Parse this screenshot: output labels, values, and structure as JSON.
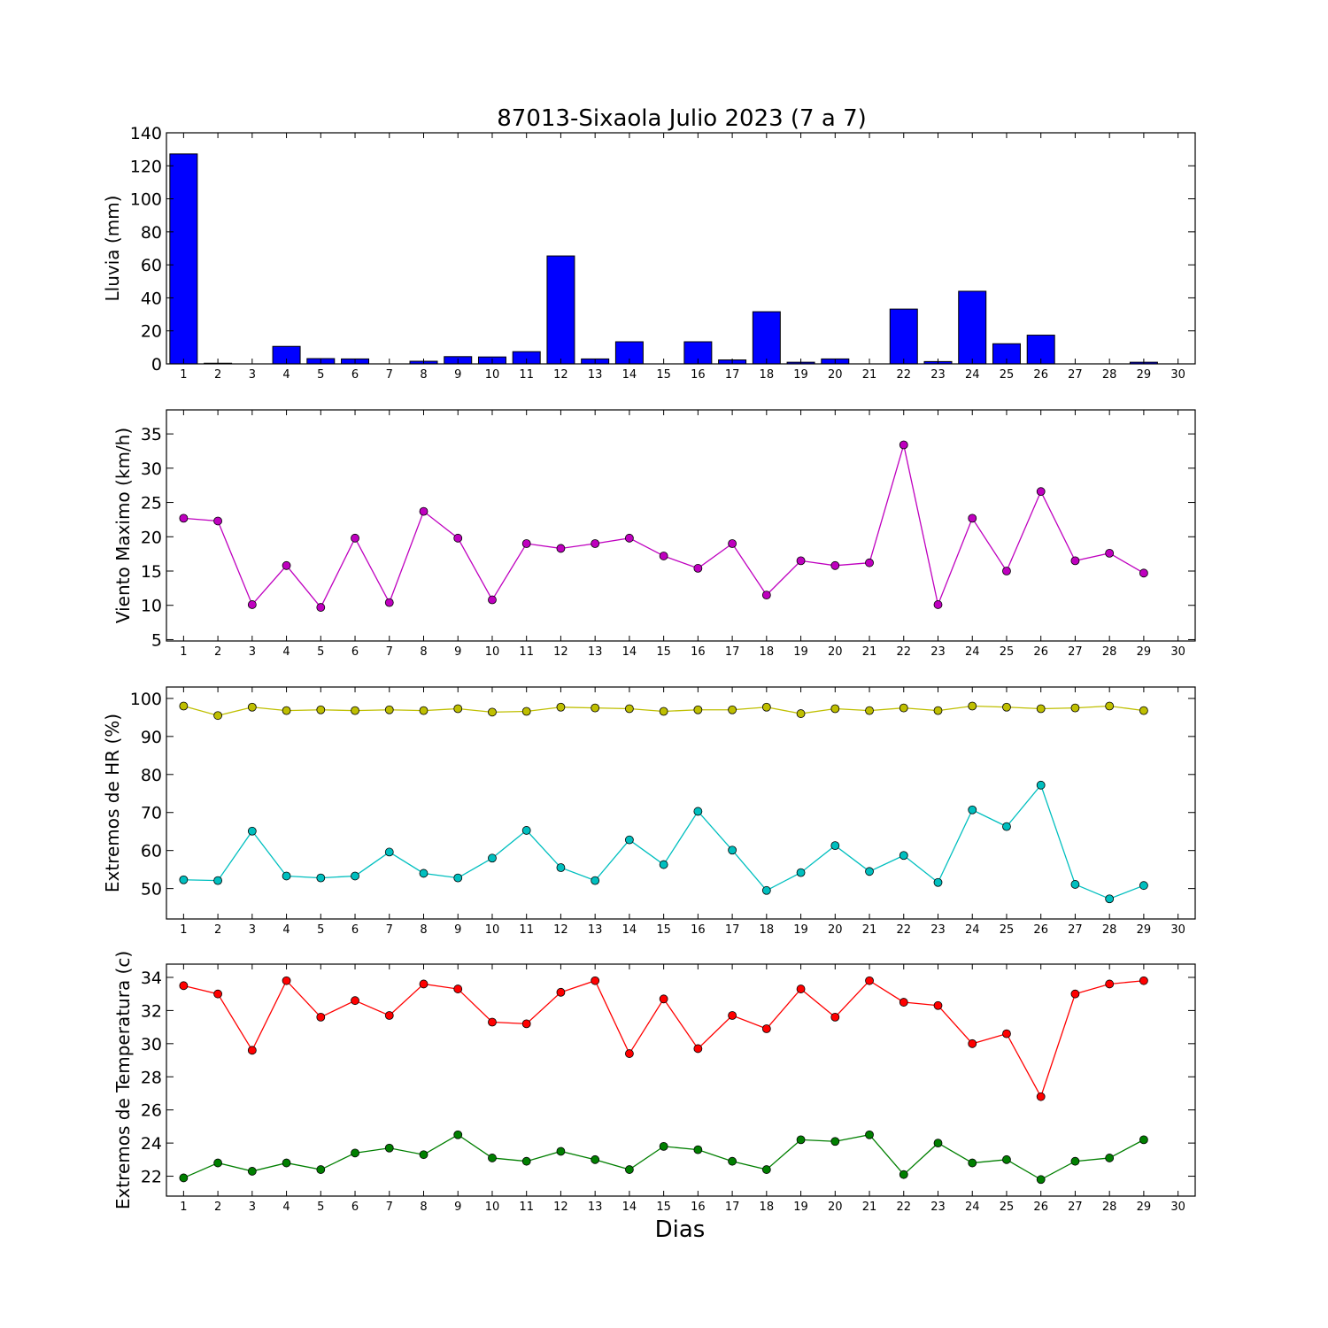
{
  "chart_data": {
    "type": "multi-panel",
    "title": "87013-Sixaola Julio 2023  (7 a 7)",
    "xlabel": "Dias",
    "x": [
      1,
      2,
      3,
      4,
      5,
      6,
      7,
      8,
      9,
      10,
      11,
      12,
      13,
      14,
      15,
      16,
      17,
      18,
      19,
      20,
      21,
      22,
      23,
      24,
      25,
      26,
      27,
      28,
      29,
      30
    ],
    "panels": [
      {
        "type": "bar",
        "ylabel": "Lluvia (mm)",
        "ylim": [
          0,
          140
        ],
        "yticks": [
          0,
          20,
          40,
          60,
          80,
          100,
          120,
          140
        ],
        "series": [
          {
            "color": "#0000ff",
            "values": [
              127.2,
              0.4,
              0,
              10.6,
              3.2,
              3.0,
              0,
              1.6,
              4.4,
              4.2,
              7.4,
              65.4,
              3.0,
              13.4,
              0,
              13.4,
              2.4,
              31.6,
              1.0,
              3.0,
              0,
              33.2,
              1.4,
              44.0,
              12.2,
              17.4,
              0,
              0,
              1.0,
              null
            ]
          }
        ]
      },
      {
        "type": "line",
        "ylabel": "Viento Maximo (km/h)",
        "ylim": [
          4.8,
          38.5
        ],
        "yticks": [
          5,
          10,
          15,
          20,
          25,
          30,
          35
        ],
        "series": [
          {
            "color": "#bf00bf",
            "values": [
              22.7,
              22.3,
              10.1,
              15.8,
              9.7,
              19.8,
              10.4,
              23.7,
              19.8,
              10.8,
              19.0,
              18.3,
              19.0,
              19.8,
              17.2,
              15.4,
              19.0,
              11.5,
              16.5,
              15.8,
              16.2,
              33.4,
              10.1,
              22.7,
              15.0,
              26.6,
              16.5,
              17.6,
              14.7,
              null
            ]
          }
        ]
      },
      {
        "type": "line",
        "ylabel": "Extremos de HR (%)",
        "ylim": [
          42,
          103
        ],
        "yticks": [
          50,
          60,
          70,
          80,
          90,
          100
        ],
        "series": [
          {
            "color": "#bfbf00",
            "values": [
              98.0,
              95.5,
              97.7,
              96.8,
              97.0,
              96.8,
              97.0,
              96.8,
              97.3,
              96.4,
              96.6,
              97.7,
              97.5,
              97.3,
              96.6,
              97.0,
              97.0,
              97.7,
              96.0,
              97.3,
              96.8,
              97.5,
              96.8,
              98.0,
              97.7,
              97.3,
              97.5,
              98.0,
              96.8,
              null
            ]
          },
          {
            "color": "#00bfbf",
            "values": [
              52.3,
              52.1,
              65.1,
              53.3,
              52.8,
              53.3,
              59.6,
              54.0,
              52.8,
              58.0,
              65.3,
              55.5,
              52.1,
              62.8,
              56.3,
              70.3,
              60.1,
              49.5,
              54.2,
              61.3,
              54.5,
              58.7,
              51.6,
              70.7,
              66.3,
              77.2,
              51.1,
              47.3,
              50.8,
              null
            ]
          }
        ]
      },
      {
        "type": "line",
        "ylabel": "Extremos de Temperatura (c)",
        "ylim": [
          20.8,
          34.8
        ],
        "yticks": [
          22,
          24,
          26,
          28,
          30,
          32,
          34
        ],
        "series": [
          {
            "color": "#ff0000",
            "values": [
              33.5,
              33.0,
              29.6,
              33.8,
              31.6,
              32.6,
              31.7,
              33.6,
              33.3,
              31.3,
              31.2,
              33.1,
              33.8,
              29.4,
              32.7,
              29.7,
              31.7,
              30.9,
              33.3,
              31.6,
              33.8,
              32.5,
              32.3,
              30.0,
              30.6,
              26.8,
              33.0,
              33.6,
              33.8,
              null
            ]
          },
          {
            "color": "#007f00",
            "values": [
              21.9,
              22.8,
              22.3,
              22.8,
              22.4,
              23.4,
              23.7,
              23.3,
              24.5,
              23.1,
              22.9,
              23.5,
              23.0,
              22.4,
              23.8,
              23.6,
              22.9,
              22.4,
              24.2,
              24.1,
              24.5,
              22.1,
              24.0,
              22.8,
              23.0,
              21.8,
              22.9,
              23.1,
              24.2,
              null
            ]
          }
        ]
      }
    ]
  }
}
